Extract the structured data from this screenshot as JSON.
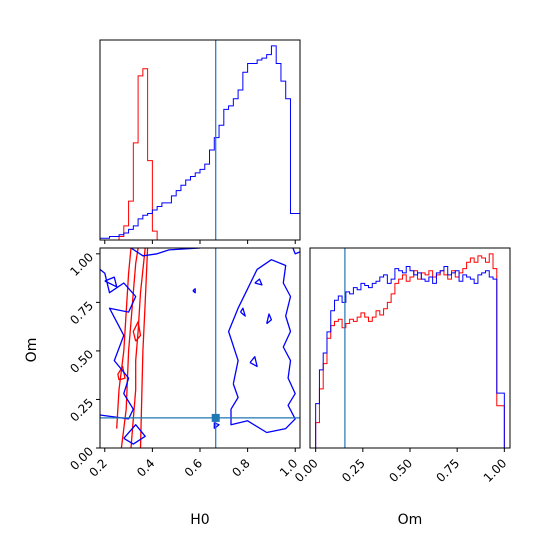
{
  "chart_data": {
    "type": "corner",
    "parameters": [
      "H0",
      "Om"
    ],
    "colors": {
      "red": "#ff0000",
      "blue": "#0000ff",
      "truth": "#1f77b4"
    },
    "truth": {
      "H0": 0.666,
      "Om": 0.155
    },
    "panels": [
      {
        "id": "H0-marginal",
        "type": "histogram",
        "x": "H0",
        "xlim": [
          0.18,
          1.02
        ],
        "xticks": [
          0.2,
          0.4,
          0.6,
          0.8,
          1.0
        ],
        "bin_edges": [
          0.18,
          0.2,
          0.22,
          0.24,
          0.26,
          0.28,
          0.3,
          0.32,
          0.34,
          0.36,
          0.38,
          0.4,
          0.42,
          0.44,
          0.46,
          0.48,
          0.5,
          0.52,
          0.54,
          0.56,
          0.58,
          0.6,
          0.62,
          0.64,
          0.66,
          0.68,
          0.7,
          0.72,
          0.74,
          0.76,
          0.78,
          0.8,
          0.82,
          0.84,
          0.86,
          0.88,
          0.9,
          0.92,
          0.94,
          0.96,
          0.98,
          1.0,
          1.02
        ],
        "series": [
          {
            "name": "red",
            "color": "#ff0000",
            "values": [
              0,
              0,
              0,
              0,
              0.02,
              0.08,
              0.22,
              0.55,
              0.93,
              0.97,
              0.45,
              0.05,
              0,
              0,
              0,
              0,
              0,
              0,
              0,
              0,
              0,
              0,
              0,
              0,
              0,
              0,
              0,
              0,
              0,
              0,
              0,
              0,
              0,
              0,
              0,
              0,
              0,
              0,
              0,
              0,
              0,
              0
            ]
          },
          {
            "name": "blue",
            "color": "#0000ff",
            "values": [
              0.01,
              0.01,
              0.02,
              0.02,
              0.03,
              0.04,
              0.06,
              0.08,
              0.12,
              0.14,
              0.15,
              0.17,
              0.19,
              0.21,
              0.21,
              0.25,
              0.28,
              0.31,
              0.34,
              0.36,
              0.38,
              0.4,
              0.43,
              0.51,
              0.58,
              0.65,
              0.74,
              0.76,
              0.8,
              0.85,
              0.95,
              1.0,
              1.0,
              1.02,
              1.03,
              1.05,
              1.1,
              1.0,
              0.9,
              0.8,
              0.15,
              0.15
            ]
          }
        ]
      },
      {
        "id": "H0-Om-contour",
        "type": "contour",
        "x": "H0",
        "y": "Om",
        "xlim": [
          0.18,
          1.02
        ],
        "ylim": [
          0.0,
          1.03
        ],
        "xticks": [
          0.2,
          0.4,
          0.6,
          0.8,
          1.0
        ],
        "yticks": [
          0.0,
          0.25,
          0.5,
          0.75,
          1.0
        ],
        "series": [
          {
            "name": "red",
            "color": "#ff0000",
            "contours": [
              [
                [
                  0.27,
                  0.0
                ],
                [
                  0.28,
                  0.1
                ],
                [
                  0.29,
                  0.2
                ],
                [
                  0.295,
                  0.35
                ],
                [
                  0.3,
                  0.5
                ],
                [
                  0.31,
                  0.65
                ],
                [
                  0.32,
                  0.8
                ],
                [
                  0.33,
                  0.95
                ],
                [
                  0.34,
                  1.03
                ]
              ],
              [
                [
                  0.31,
                  0.0
                ],
                [
                  0.32,
                  0.15
                ],
                [
                  0.33,
                  0.3
                ],
                [
                  0.33,
                  0.45
                ],
                [
                  0.34,
                  0.6
                ],
                [
                  0.35,
                  0.8
                ],
                [
                  0.37,
                  1.03
                ]
              ],
              [
                [
                  0.25,
                  0.1
                ],
                [
                  0.26,
                  0.3
                ],
                [
                  0.28,
                  0.5
                ],
                [
                  0.29,
                  0.7
                ],
                [
                  0.3,
                  0.9
                ],
                [
                  0.31,
                  1.03
                ]
              ],
              [
                [
                  0.35,
                  0.0
                ],
                [
                  0.355,
                  0.25
                ],
                [
                  0.36,
                  0.5
                ],
                [
                  0.37,
                  0.75
                ],
                [
                  0.38,
                  1.03
                ]
              ],
              [
                [
                  0.26,
                  0.35
                ],
                [
                  0.285,
                  0.36
                ],
                [
                  0.275,
                  0.42
                ],
                [
                  0.255,
                  0.38
                ],
                [
                  0.26,
                  0.35
                ]
              ],
              [
                [
                  0.33,
                  0.55
                ],
                [
                  0.35,
                  0.58
                ],
                [
                  0.34,
                  0.65
                ],
                [
                  0.32,
                  0.6
                ],
                [
                  0.33,
                  0.55
                ]
              ]
            ]
          },
          {
            "name": "blue",
            "color": "#0000ff",
            "contours": [
              [
                [
                  0.18,
                  0.17
                ],
                [
                  0.3,
                  0.15
                ],
                [
                  0.32,
                  0.2
                ],
                [
                  0.28,
                  0.28
                ],
                [
                  0.3,
                  0.36
                ],
                [
                  0.24,
                  0.45
                ],
                [
                  0.28,
                  0.58
                ],
                [
                  0.22,
                  0.72
                ],
                [
                  0.3,
                  0.7
                ],
                [
                  0.33,
                  0.78
                ],
                [
                  0.28,
                  0.85
                ],
                [
                  0.22,
                  0.8
                ],
                [
                  0.2,
                  0.9
                ],
                [
                  0.18,
                  0.92
                ]
              ],
              [
                [
                  0.28,
                  0.05
                ],
                [
                  0.32,
                  0.02
                ],
                [
                  0.37,
                  0.06
                ],
                [
                  0.33,
                  0.12
                ],
                [
                  0.28,
                  0.05
                ]
              ],
              [
                [
                  0.2,
                  0.86
                ],
                [
                  0.25,
                  0.83
                ],
                [
                  0.24,
                  0.88
                ],
                [
                  0.2,
                  0.86
                ]
              ],
              [
                [
                  0.31,
                  1.03
                ],
                [
                  0.36,
                  0.99
                ],
                [
                  0.42,
                  1.0
                ],
                [
                  0.47,
                  1.02
                ],
                [
                  0.6,
                  1.03
                ]
              ],
              [
                [
                  0.74,
                  0.33
                ],
                [
                  0.76,
                  0.45
                ],
                [
                  0.72,
                  0.6
                ],
                [
                  0.76,
                  0.72
                ],
                [
                  0.8,
                  0.82
                ],
                [
                  0.84,
                  0.92
                ],
                [
                  0.9,
                  0.97
                ],
                [
                  0.96,
                  0.94
                ],
                [
                  0.95,
                  0.85
                ],
                [
                  0.98,
                  0.78
                ],
                [
                  0.96,
                  0.68
                ],
                [
                  0.98,
                  0.6
                ],
                [
                  0.95,
                  0.52
                ],
                [
                  0.98,
                  0.45
                ],
                [
                  0.97,
                  0.36
                ],
                [
                  1.0,
                  0.28
                ],
                [
                  0.97,
                  0.22
                ],
                [
                  1.0,
                  0.15
                ],
                [
                  0.96,
                  0.1
                ],
                [
                  0.88,
                  0.08
                ],
                [
                  0.8,
                  0.14
                ],
                [
                  0.73,
                  0.12
                ],
                [
                  0.73,
                  0.2
                ],
                [
                  0.76,
                  0.26
                ],
                [
                  0.74,
                  0.33
                ]
              ],
              [
                [
                  0.81,
                  0.44
                ],
                [
                  0.84,
                  0.42
                ],
                [
                  0.83,
                  0.47
                ],
                [
                  0.81,
                  0.44
                ]
              ],
              [
                [
                  0.88,
                  0.64
                ],
                [
                  0.9,
                  0.66
                ],
                [
                  0.89,
                  0.69
                ],
                [
                  0.88,
                  0.64
                ]
              ],
              [
                [
                  0.83,
                  0.85
                ],
                [
                  0.86,
                  0.84
                ],
                [
                  0.85,
                  0.87
                ],
                [
                  0.83,
                  0.85
                ]
              ],
              [
                [
                  0.77,
                  0.7
                ],
                [
                  0.79,
                  0.68
                ],
                [
                  0.78,
                  0.72
                ],
                [
                  0.77,
                  0.7
                ]
              ],
              [
                [
                  0.66,
                  0.1
                ],
                [
                  0.68,
                  0.12
                ],
                [
                  0.66,
                  0.13
                ],
                [
                  0.66,
                  0.1
                ]
              ],
              [
                [
                  0.57,
                  0.81
                ],
                [
                  0.58,
                  0.8
                ],
                [
                  0.58,
                  0.82
                ],
                [
                  0.57,
                  0.81
                ]
              ],
              [
                [
                  0.99,
                  1.03
                ],
                [
                  1.0,
                  1.0
                ],
                [
                  1.02,
                  1.01
                ]
              ]
            ]
          }
        ]
      },
      {
        "id": "Om-marginal",
        "type": "histogram",
        "x": "Om",
        "xlim": [
          -0.03,
          1.03
        ],
        "xticks": [
          0.0,
          0.25,
          0.5,
          0.75,
          1.0
        ],
        "xticklabels": [
          "0.00",
          "0.25",
          "0.50",
          "0.75",
          "1.00"
        ],
        "bin_edges": [
          0.0,
          0.02,
          0.04,
          0.06,
          0.08,
          0.1,
          0.12,
          0.14,
          0.16,
          0.18,
          0.2,
          0.22,
          0.24,
          0.26,
          0.28,
          0.3,
          0.32,
          0.34,
          0.36,
          0.38,
          0.4,
          0.42,
          0.44,
          0.46,
          0.48,
          0.5,
          0.52,
          0.54,
          0.56,
          0.58,
          0.6,
          0.62,
          0.64,
          0.66,
          0.68,
          0.7,
          0.72,
          0.74,
          0.76,
          0.78,
          0.8,
          0.82,
          0.84,
          0.86,
          0.88,
          0.9,
          0.92,
          0.94,
          0.96,
          0.98,
          1.0
        ],
        "series": [
          {
            "name": "red",
            "color": "#ff0000",
            "values": [
              0.12,
              0.28,
              0.4,
              0.52,
              0.58,
              0.6,
              0.61,
              0.57,
              0.59,
              0.61,
              0.6,
              0.62,
              0.64,
              0.62,
              0.6,
              0.62,
              0.65,
              0.63,
              0.66,
              0.69,
              0.73,
              0.78,
              0.8,
              0.82,
              0.79,
              0.81,
              0.84,
              0.8,
              0.83,
              0.82,
              0.84,
              0.81,
              0.82,
              0.84,
              0.82,
              0.8,
              0.84,
              0.81,
              0.83,
              0.85,
              0.88,
              0.9,
              0.88,
              0.91,
              0.9,
              0.88,
              0.92,
              0.85,
              0.2,
              0.2
            ]
          },
          {
            "name": "blue",
            "color": "#0000ff",
            "values": [
              0.21,
              0.37,
              0.45,
              0.55,
              0.65,
              0.7,
              0.72,
              0.69,
              0.74,
              0.73,
              0.76,
              0.75,
              0.78,
              0.77,
              0.76,
              0.78,
              0.79,
              0.81,
              0.82,
              0.78,
              0.8,
              0.85,
              0.84,
              0.83,
              0.86,
              0.84,
              0.82,
              0.83,
              0.8,
              0.79,
              0.81,
              0.78,
              0.83,
              0.84,
              0.86,
              0.82,
              0.83,
              0.84,
              0.79,
              0.82,
              0.81,
              0.8,
              0.78,
              0.82,
              0.83,
              0.84,
              0.81,
              0.8,
              0.26,
              0.26
            ]
          }
        ]
      }
    ]
  }
}
